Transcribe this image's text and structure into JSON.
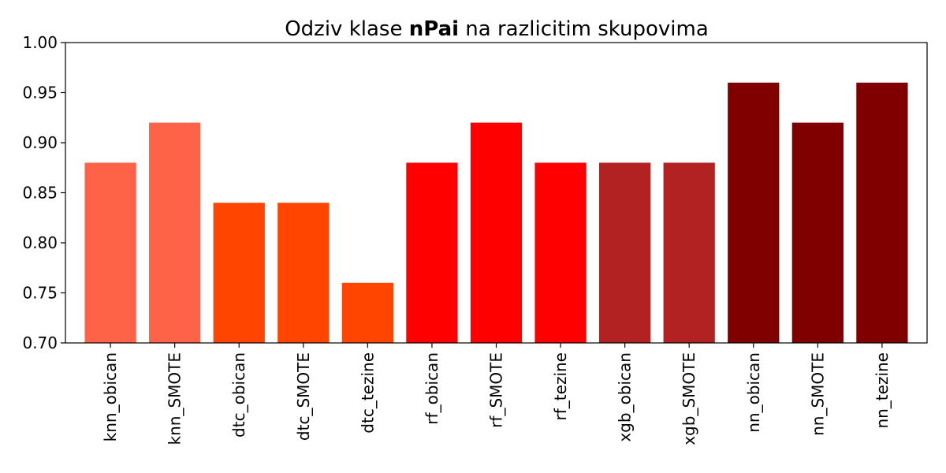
{
  "chart_data": {
    "type": "bar",
    "title_parts": [
      {
        "text": "Odziv klase ",
        "bold": false
      },
      {
        "text": "nPai",
        "bold": true
      },
      {
        "text": " na razlicitim skupovima",
        "bold": false
      }
    ],
    "xlabel": "",
    "ylabel": "",
    "ylim": [
      0.7,
      1.0
    ],
    "yticks": [
      "0.70",
      "0.75",
      "0.80",
      "0.85",
      "0.90",
      "0.95",
      "1.00"
    ],
    "ytick_values": [
      0.7,
      0.75,
      0.8,
      0.85,
      0.9,
      0.95,
      1.0
    ],
    "grid": false,
    "categories": [
      "knn_obican",
      "knn_SMOTE",
      "dtc_obican",
      "dtc_SMOTE",
      "dtc_tezine",
      "rf_obican",
      "rf_SMOTE",
      "rf_tezine",
      "xgb_obican",
      "xgb_SMOTE",
      "nn_obican",
      "nn_SMOTE",
      "nn_tezine"
    ],
    "values": [
      0.88,
      0.92,
      0.84,
      0.84,
      0.76,
      0.88,
      0.92,
      0.88,
      0.88,
      0.88,
      0.96,
      0.92,
      0.96
    ],
    "colors": [
      "#ff6347",
      "#ff6347",
      "#ff4500",
      "#ff4500",
      "#ff4500",
      "#ff0000",
      "#ff0000",
      "#ff0000",
      "#b22222",
      "#b22222",
      "#800000",
      "#800000",
      "#800000"
    ]
  }
}
